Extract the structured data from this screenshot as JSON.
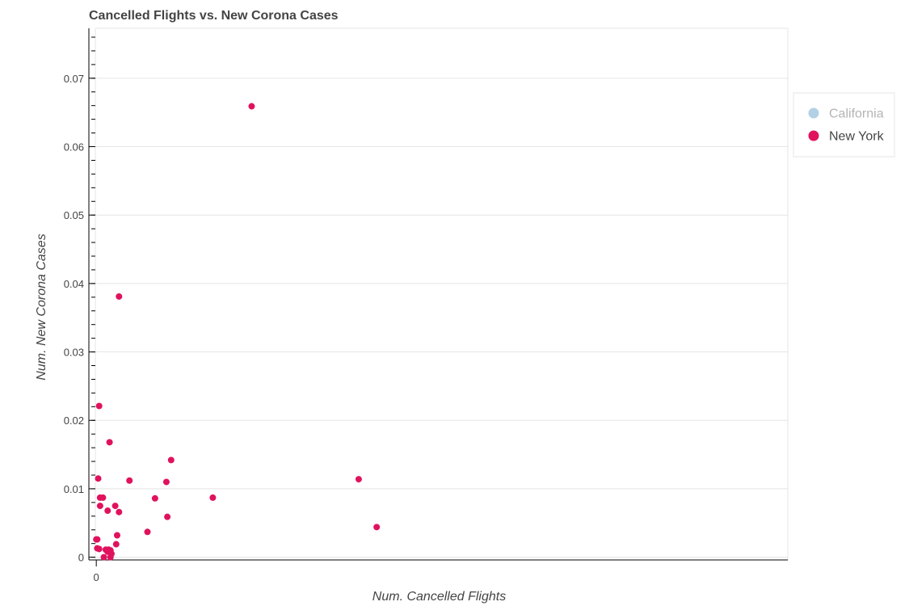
{
  "chart_data": {
    "type": "scatter",
    "title": "Cancelled Flights vs. New Corona Cases",
    "xlabel": "Num. Cancelled Flights",
    "ylabel": "Num. New Corona Cases",
    "xlim": [
      -0.1,
      73
    ],
    "ylim": [
      -0.0004,
      0.0773
    ],
    "x_ticks": [
      0
    ],
    "x_tick_labels": [
      "0"
    ],
    "y_ticks": [
      0,
      0.01,
      0.02,
      0.03,
      0.04,
      0.05,
      0.06,
      0.07
    ],
    "y_tick_labels": [
      "0",
      "0.01",
      "0.02",
      "0.03",
      "0.04",
      "0.05",
      "0.06",
      "0.07"
    ],
    "grid": true,
    "legend_position": "right",
    "series": [
      {
        "name": "California",
        "color": "#b3d1e6",
        "muted": true,
        "points": []
      },
      {
        "name": "New York",
        "color": "#e0125d",
        "muted": false,
        "points": [
          {
            "x": 16.4,
            "y": 0.0659
          },
          {
            "x": 2.4,
            "y": 0.0381
          },
          {
            "x": 0.3,
            "y": 0.0221
          },
          {
            "x": 1.4,
            "y": 0.0168
          },
          {
            "x": 7.9,
            "y": 0.0142
          },
          {
            "x": 0.2,
            "y": 0.0115
          },
          {
            "x": 3.5,
            "y": 0.0112
          },
          {
            "x": 27.7,
            "y": 0.0114
          },
          {
            "x": 7.4,
            "y": 0.011
          },
          {
            "x": 0.4,
            "y": 0.0087
          },
          {
            "x": 0.7,
            "y": 0.0087
          },
          {
            "x": 6.2,
            "y": 0.0086
          },
          {
            "x": 12.3,
            "y": 0.0087
          },
          {
            "x": 0.4,
            "y": 0.0075
          },
          {
            "x": 2.0,
            "y": 0.0075
          },
          {
            "x": 1.2,
            "y": 0.0068
          },
          {
            "x": 2.4,
            "y": 0.0066
          },
          {
            "x": 7.5,
            "y": 0.0059
          },
          {
            "x": 29.6,
            "y": 0.0044
          },
          {
            "x": 5.4,
            "y": 0.0037
          },
          {
            "x": 2.2,
            "y": 0.0032
          },
          {
            "x": 0.0,
            "y": 0.0026
          },
          {
            "x": 0.1,
            "y": 0.0026
          },
          {
            "x": 2.1,
            "y": 0.0019
          },
          {
            "x": 0.1,
            "y": 0.0013
          },
          {
            "x": 0.3,
            "y": 0.0012
          },
          {
            "x": 1.0,
            "y": 0.0011
          },
          {
            "x": 1.3,
            "y": 0.0011
          },
          {
            "x": 1.5,
            "y": 0.001
          },
          {
            "x": 1.2,
            "y": 0.0008
          },
          {
            "x": 1.6,
            "y": 0.0005
          },
          {
            "x": 0.8,
            "y": 0.0
          },
          {
            "x": 1.5,
            "y": 0.0
          }
        ]
      }
    ]
  }
}
